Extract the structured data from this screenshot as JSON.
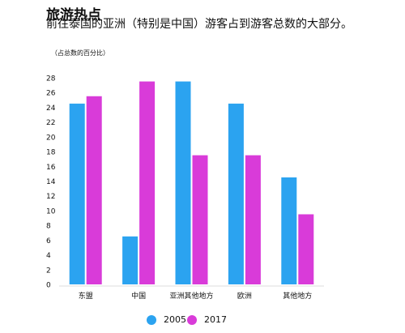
{
  "header": {
    "title": "旅游热点",
    "subtitle": "前往泰国的亚洲（特别是中国）游客占到游客总数的大部分。",
    "unit_note": "（占总数的百分比）"
  },
  "colors": {
    "series_2005": "#2BA3F0",
    "series_2017": "#D93BD9",
    "gridline": "#dddddd",
    "text": "#111111"
  },
  "chart_data": {
    "type": "bar",
    "title": "旅游热点",
    "subtitle": "前往泰国的亚洲（特别是中国）游客占到游客总数的大部分。",
    "ylabel": "（占总数的百分比）",
    "xlabel": "",
    "categories": [
      "东盟",
      "中国",
      "亚洲其他地方",
      "欧洲",
      "其他地方"
    ],
    "series": [
      {
        "name": "2005",
        "values": [
          24.5,
          6.5,
          27.5,
          24.5,
          14.5
        ]
      },
      {
        "name": "2017",
        "values": [
          25.5,
          27.5,
          17.5,
          17.5,
          9.5
        ]
      }
    ],
    "ylim": [
      0,
      28
    ],
    "yticks": [
      0,
      2,
      4,
      6,
      8,
      10,
      12,
      14,
      16,
      18,
      20,
      22,
      24,
      26,
      28
    ],
    "grid": false,
    "legend_position": "bottom"
  }
}
